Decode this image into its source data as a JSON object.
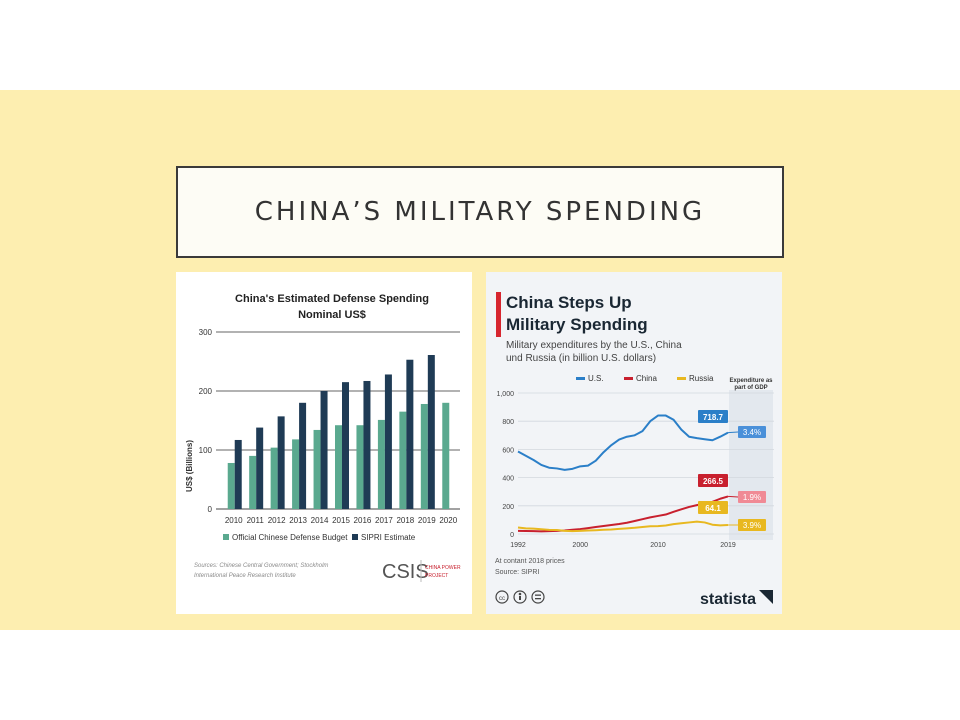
{
  "slide": {
    "title": "CHINA’S MILITARY SPENDING",
    "colors": {
      "band": "#fdeeb0",
      "title_bg": "#fdfcf5"
    }
  },
  "chart_data": [
    {
      "type": "bar",
      "title": "China's Estimated Defense Spending",
      "subtitle": "Nominal US$",
      "ylabel": "US$ (Billions)",
      "xlabel": "",
      "ylim": [
        0,
        300
      ],
      "yticks": [
        0,
        100,
        200,
        300
      ],
      "categories": [
        "2010",
        "2011",
        "2012",
        "2013",
        "2014",
        "2015",
        "2016",
        "2017",
        "2018",
        "2019",
        "2020"
      ],
      "series": [
        {
          "name": "Official Chinese Defense Budget",
          "color": "#5aa98f",
          "values": [
            78,
            90,
            104,
            118,
            134,
            142,
            142,
            151,
            165,
            178,
            180
          ]
        },
        {
          "name": "SIPRI Estimate",
          "color": "#1f3b55",
          "values": [
            117,
            138,
            157,
            180,
            200,
            215,
            217,
            228,
            253,
            261,
            null
          ]
        }
      ],
      "source": "Sources: Chinese Central Government; Stockholm International Peace Research Institute",
      "logo": "CSIS",
      "logo_sub_1": "CHINA POWER",
      "logo_sub_2": "PROJECT",
      "grid": true,
      "legend": "bottom"
    },
    {
      "type": "line",
      "title_line1": "China Steps Up",
      "title_line2": "Military Spending",
      "subtitle_line1": "Military expenditures by the U.S., China",
      "subtitle_line2": "und Russia (in billion U.S. dollars)",
      "legend_label": "Expenditure as",
      "legend_label_2": "part of GDP",
      "ylim": [
        0,
        1000
      ],
      "yticks": [
        "0",
        "200",
        "400",
        "600",
        "800",
        "1,000"
      ],
      "xlim": [
        1992,
        2019
      ],
      "xticks": [
        "1992",
        "2000",
        "2010",
        "2019"
      ],
      "x": [
        1992,
        1993,
        1994,
        1995,
        1996,
        1997,
        1998,
        1999,
        2000,
        2001,
        2002,
        2003,
        2004,
        2005,
        2006,
        2007,
        2008,
        2009,
        2010,
        2011,
        2012,
        2013,
        2014,
        2015,
        2016,
        2017,
        2018,
        2019
      ],
      "series": [
        {
          "name": "U.S.",
          "color": "#2b7fc8",
          "values": [
            585,
            555,
            525,
            490,
            470,
            465,
            455,
            462,
            480,
            485,
            520,
            580,
            630,
            670,
            690,
            700,
            730,
            800,
            840,
            840,
            810,
            740,
            690,
            680,
            672,
            665,
            690,
            718.7
          ],
          "end_label": "718.7",
          "gdp": "3.4%",
          "gdp_color": "#4a90d9"
        },
        {
          "name": "China",
          "color": "#c8202e",
          "values": [
            22,
            21,
            20,
            19,
            20,
            22,
            25,
            30,
            35,
            42,
            50,
            57,
            64,
            71,
            80,
            92,
            105,
            118,
            128,
            138,
            157,
            175,
            192,
            205,
            216,
            228,
            250,
            266.5
          ],
          "end_label": "266.5",
          "gdp": "1.9%",
          "gdp_color": "#f08a95"
        },
        {
          "name": "Russia",
          "color": "#e8b820",
          "values": [
            46,
            40,
            38,
            34,
            29,
            28,
            22,
            20,
            22,
            25,
            27,
            30,
            32,
            36,
            40,
            44,
            50,
            55,
            56,
            60,
            70,
            76,
            82,
            88,
            82,
            66,
            61,
            64.1
          ],
          "end_label": "64.1",
          "gdp": "3.9%",
          "gdp_color": "#e8b820"
        }
      ],
      "note1": "At contant 2018 prices",
      "note2": "Source: SIPRI",
      "brand": "statista",
      "grid": true,
      "legend": "top"
    }
  ]
}
